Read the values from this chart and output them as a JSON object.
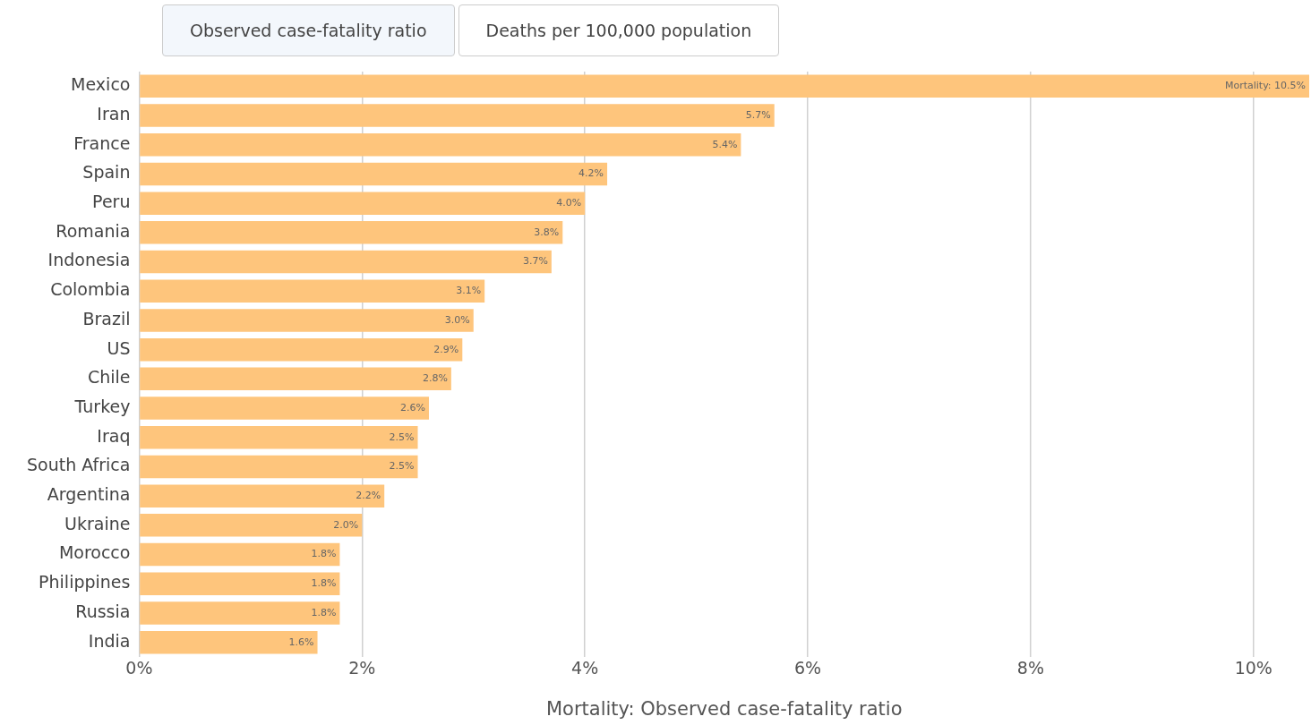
{
  "chart_data": {
    "type": "bar",
    "orientation": "horizontal",
    "xlabel": "Mortality: Observed case-fatality ratio",
    "annotations": [
      "Observed case-fatality ratio",
      "Deaths per 100,000 population"
    ],
    "categories": [
      "Mexico",
      "Iran",
      "France",
      "Spain",
      "Peru",
      "Romania",
      "Indonesia",
      "Colombia",
      "Brazil",
      "US",
      "Chile",
      "Turkey",
      "Iraq",
      "South Africa",
      "Argentina",
      "Ukraine",
      "Morocco",
      "Philippines",
      "Russia",
      "India"
    ],
    "values": [
      10.5,
      5.7,
      5.4,
      4.2,
      4.0,
      3.8,
      3.7,
      3.1,
      3.0,
      2.9,
      2.8,
      2.6,
      2.5,
      2.5,
      2.2,
      2.0,
      1.8,
      1.8,
      1.8,
      1.6
    ],
    "value_labels": [
      "Mortality: 10.5%",
      "5.7%",
      "5.4%",
      "4.2%",
      "4.0%",
      "3.8%",
      "3.7%",
      "3.1%",
      "3.0%",
      "2.9%",
      "2.8%",
      "2.6%",
      "2.5%",
      "2.5%",
      "2.2%",
      "2.0%",
      "1.8%",
      "1.8%",
      "1.8%",
      "1.6%"
    ],
    "color": "#fec57c",
    "xlim": [
      0,
      10.5
    ],
    "xticks": [
      {
        "value": 0,
        "label": "0%"
      },
      {
        "value": 2,
        "label": "2%"
      },
      {
        "value": 4,
        "label": "4%"
      },
      {
        "value": 6,
        "label": "6%"
      },
      {
        "value": 8,
        "label": "8%"
      },
      {
        "value": 10,
        "label": "10%"
      }
    ],
    "grid": "x"
  }
}
